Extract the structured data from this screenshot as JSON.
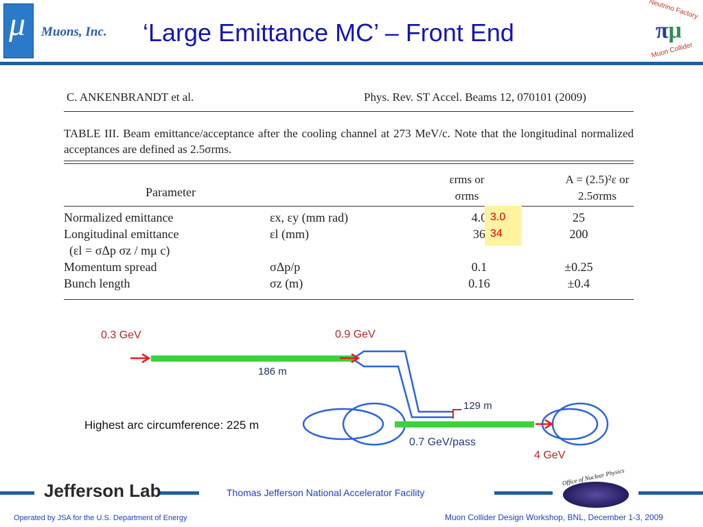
{
  "header": {
    "logo_symbol": "μ",
    "organization": "Muons, Inc.",
    "title": "‘Large Emittance MC’ – Front End",
    "right_logo_top": "Neutrino Factory",
    "right_logo_bottom": "Muon Collider"
  },
  "paper": {
    "running_head_left": "C. ANKENBRANDT et al.",
    "running_head_right": "Phys. Rev. ST Accel. Beams 12, 070101 (2009)",
    "caption": "TABLE III.  Beam emittance/acceptance after the cooling channel at 273 MeV/c. Note that the longitudinal normalized acceptances are defined as 2.5σrms.",
    "table": {
      "columns": [
        "Parameter",
        "εrms or σrms",
        "A = (2.5)²ε or 2.5σrms"
      ],
      "rows": [
        [
          "Normalized emittance",
          "εx, εy (mm rad)",
          "4.0",
          "25"
        ],
        [
          "Longitudinal emittance",
          "εl (mm)",
          "36",
          "200"
        ],
        [
          "(εl = σΔp σz / mμ c)"
        ],
        [
          "Momentum spread",
          "σΔp/p",
          "0.1",
          "±0.25"
        ],
        [
          "Bunch length",
          "σz (m)",
          "0.16",
          "±0.4"
        ]
      ]
    },
    "annotation": [
      "3.0",
      "34"
    ]
  },
  "diagram": {
    "start_energy": "0.3 GeV",
    "linac_end_energy": "0.9 GeV",
    "linac_length": "186  m",
    "rla_length": "129  m",
    "arc_note": "Highest arc circumference: 225 m",
    "gain_per_pass": "0.7 GeV/pass",
    "final_energy": "4 GeV"
  },
  "footer": {
    "lab": "Jefferson Lab",
    "facility": "Thomas Jefferson National Accelerator Facility",
    "office": "Office of Nuclear Physics",
    "operator": "Operated by JSA for the U.S. Department of Energy",
    "event": "Muon Collider Design Workshop,  BNL,  December 1-3, 2009"
  }
}
